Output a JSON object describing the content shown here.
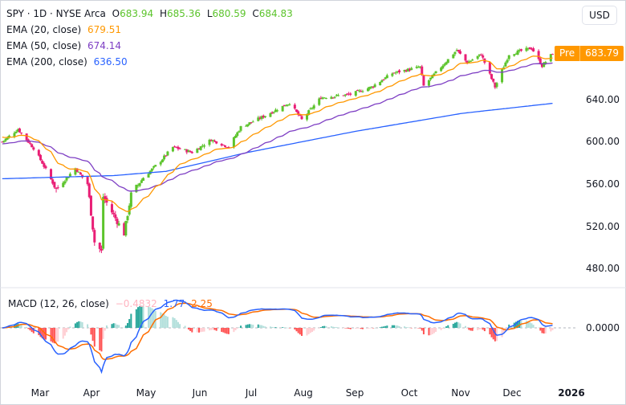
{
  "header": {
    "symbol_line": "SPY · 1D · NYSE Arca",
    "open_label": "O",
    "open": "683.94",
    "high_label": "H",
    "high": "685.36",
    "low_label": "L",
    "low": "680.59",
    "close_label": "C",
    "close": "684.83",
    "ema20_label": "EMA (20, close)",
    "ema20": "679.51",
    "ema50_label": "EMA (50, close)",
    "ema50": "674.14",
    "ema200_label": "EMA (200, close)",
    "ema200": "636.50",
    "currency": "USD",
    "pre_label": "Pre",
    "pre_price": "683.79"
  },
  "price_axis": [
    "640.00",
    "600.00",
    "560.00",
    "520.00",
    "480.00"
  ],
  "macd": {
    "label": "MACD (12, 26, close)",
    "hist": "−0.4832",
    "macd": "1.77",
    "signal": "2.25",
    "zero": "0.0000"
  },
  "time_axis": [
    "Mar",
    "Apr",
    "May",
    "Jun",
    "Jul",
    "Aug",
    "Sep",
    "Oct",
    "Nov",
    "Dec",
    "2026"
  ],
  "colors": {
    "up": "#5cc42c",
    "down": "#e91e75",
    "ema20": "#ff9800",
    "ema50": "#7e3fc4",
    "ema200": "#2962ff",
    "macd": "#2962ff",
    "signal": "#ff6d00",
    "hist_up": "#26a69a",
    "hist_down": "#ff5252",
    "pre": "#ff9800"
  },
  "chart_data": {
    "type": "candlestick",
    "symbol": "SPY",
    "interval": "1D",
    "close_keypoints": [
      [
        "2025-02-10",
        600
      ],
      [
        "2025-02-19",
        612
      ],
      [
        "2025-02-28",
        594
      ],
      [
        "2025-03-05",
        580
      ],
      [
        "2025-03-13",
        555
      ],
      [
        "2025-03-24",
        575
      ],
      [
        "2025-03-31",
        560
      ],
      [
        "2025-04-04",
        505
      ],
      [
        "2025-04-08",
        496
      ],
      [
        "2025-04-09",
        548
      ],
      [
        "2025-04-21",
        513
      ],
      [
        "2025-04-25",
        550
      ],
      [
        "2025-05-02",
        566
      ],
      [
        "2025-05-12",
        582
      ],
      [
        "2025-05-19",
        595
      ],
      [
        "2025-05-30",
        590
      ],
      [
        "2025-06-10",
        602
      ],
      [
        "2025-06-20",
        595
      ],
      [
        "2025-06-27",
        614
      ],
      [
        "2025-07-10",
        624
      ],
      [
        "2025-07-25",
        637
      ],
      [
        "2025-08-01",
        621
      ],
      [
        "2025-08-12",
        642
      ],
      [
        "2025-08-29",
        645
      ],
      [
        "2025-09-10",
        652
      ],
      [
        "2025-09-22",
        665
      ],
      [
        "2025-10-08",
        671
      ],
      [
        "2025-10-10",
        653
      ],
      [
        "2025-10-20",
        671
      ],
      [
        "2025-10-29",
        687
      ],
      [
        "2025-11-04",
        675
      ],
      [
        "2025-11-12",
        683
      ],
      [
        "2025-11-20",
        652
      ],
      [
        "2025-11-28",
        683
      ],
      [
        "2025-12-11",
        689
      ],
      [
        "2025-12-17",
        672
      ],
      [
        "2025-12-23",
        684
      ]
    ],
    "ema200_keypoints": [
      [
        "2025-02-10",
        565
      ],
      [
        "2025-04-15",
        568
      ],
      [
        "2025-05-15",
        572
      ],
      [
        "2025-07-01",
        590
      ],
      [
        "2025-09-01",
        610
      ],
      [
        "2025-11-01",
        627
      ],
      [
        "2025-12-23",
        636.5
      ]
    ],
    "y_range": [
      470,
      700
    ],
    "yticks": [
      480,
      520,
      560,
      600,
      640
    ]
  }
}
